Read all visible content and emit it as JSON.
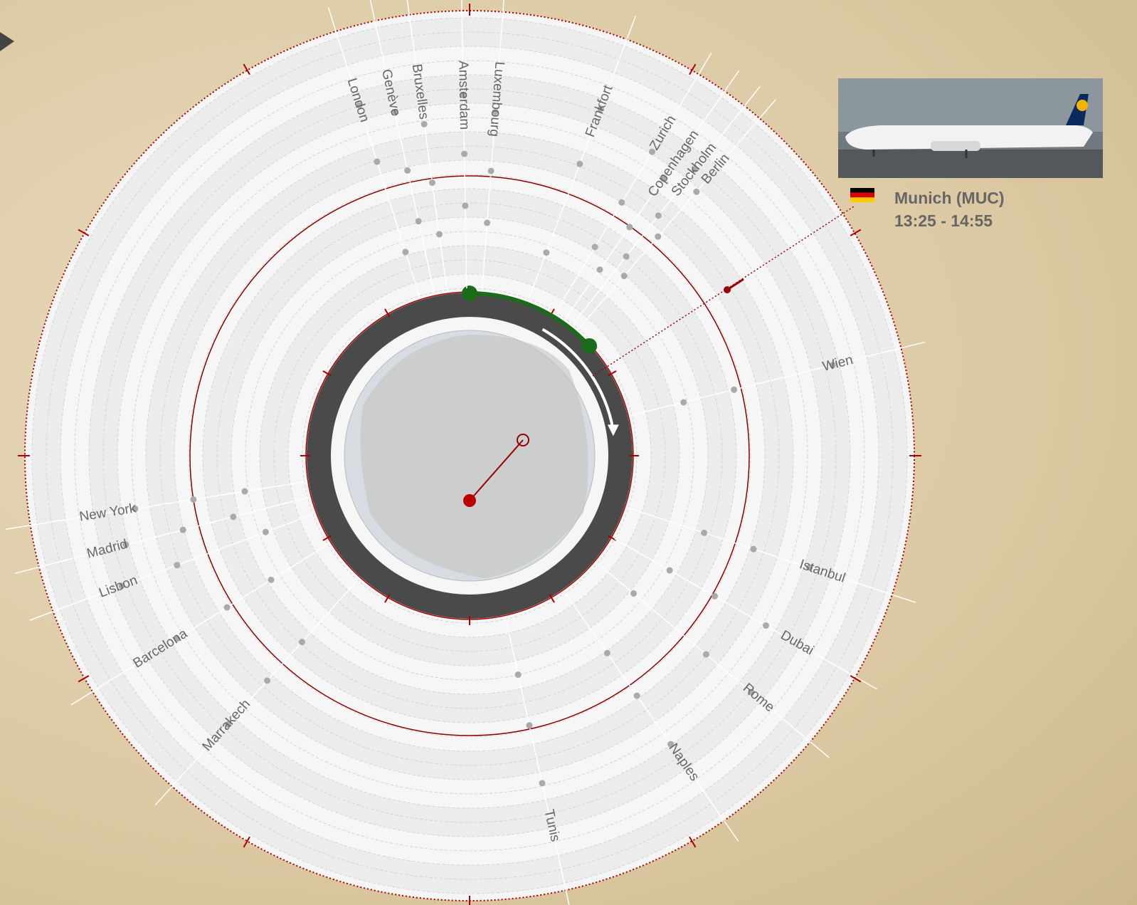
{
  "destinations": [
    "London",
    "Genève",
    "Bruxelles",
    "Amsterdam",
    "Luxembourg",
    "Frankfort",
    "Zurich",
    "Copenhagen",
    "Stockholm",
    "Berlin",
    "Wien",
    "Istanbul",
    "Dubai",
    "Rome",
    "Naples",
    "Tunis",
    "Marrakech",
    "Barcelona",
    "Lisbon",
    "Madrid",
    "New York"
  ],
  "selected_flight": {
    "title": "Munich (MUC)",
    "time": "13:25 - 14:55"
  }
}
